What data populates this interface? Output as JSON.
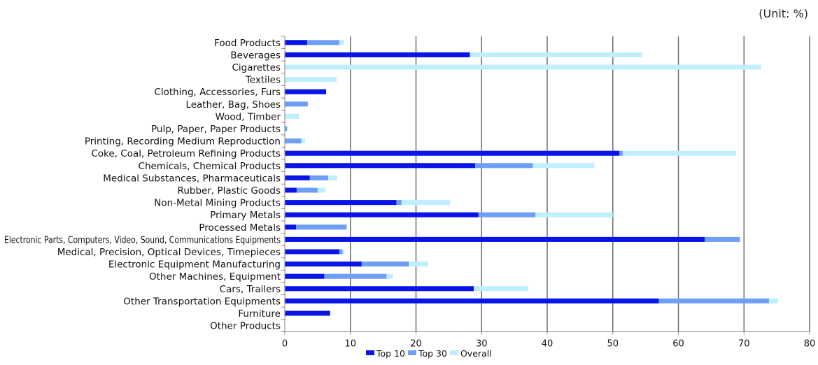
{
  "unit_label": "(Unit: %)",
  "colors": {
    "top10": "#0a14e6",
    "top30": "#6e9ef5",
    "overall": "#bfeefe",
    "grid": "#6e6e6e",
    "axis": "#888888"
  },
  "chart_data": {
    "type": "bar",
    "orientation": "horizontal",
    "stacked_overlay": true,
    "xlim": [
      0,
      80
    ],
    "xticks": [
      0,
      10,
      20,
      30,
      40,
      50,
      60,
      70,
      80
    ],
    "grid": true,
    "legend_placement": "bottom",
    "categories": [
      "Food Products",
      "Beverages",
      "Cigarettes",
      "Textiles",
      "Clothing, Accessories, Furs",
      "Leather, Bag, Shoes",
      "Wood, Timber",
      "Pulp, Paper, Paper Products",
      "Printing, Recording Medium Reproduction",
      "Coke, Coal, Petroleum Refining Products",
      "Chemicals, Chemical Products",
      "Medical Substances, Pharmaceuticals",
      "Rubber, Plastic Goods",
      "Non-Metal Mining Products",
      "Primary Metals",
      "Processed Metals",
      "Electronic Parts, Computers, Video, Sound, Communications Equipments",
      "Medical, Precision, Optical Devices, Timepieces",
      "Electronic Equipment Manufacturing",
      "Other Machines, Equipment",
      "Cars, Trailers",
      "Other Transportation Equipments",
      "Furniture",
      "Other Products"
    ],
    "series": [
      {
        "name": "Top 10",
        "color": "#0a14e6",
        "values": [
          3.4,
          28.2,
          0,
          0,
          6.3,
          0,
          0,
          0,
          0,
          51.0,
          29.0,
          3.8,
          1.8,
          17.0,
          29.5,
          1.7,
          64.0,
          8.3,
          11.7,
          6.0,
          28.8,
          57.0,
          6.9,
          0
        ]
      },
      {
        "name": "Top 30",
        "color": "#6e9ef5",
        "values": [
          8.3,
          28.2,
          0,
          0,
          6.3,
          3.5,
          0,
          0.3,
          2.5,
          51.5,
          37.8,
          6.6,
          5.0,
          17.8,
          38.2,
          9.4,
          69.4,
          8.8,
          18.9,
          15.5,
          28.8,
          73.8,
          6.9,
          0
        ]
      },
      {
        "name": "Overall",
        "color": "#bfeefe",
        "values": [
          9.0,
          54.5,
          72.6,
          7.9,
          6.3,
          3.5,
          2.2,
          0.5,
          3.1,
          68.8,
          47.2,
          8.0,
          6.2,
          25.2,
          50.0,
          9.5,
          69.4,
          9.1,
          21.8,
          16.5,
          37.1,
          75.2,
          6.9,
          0
        ]
      }
    ]
  }
}
